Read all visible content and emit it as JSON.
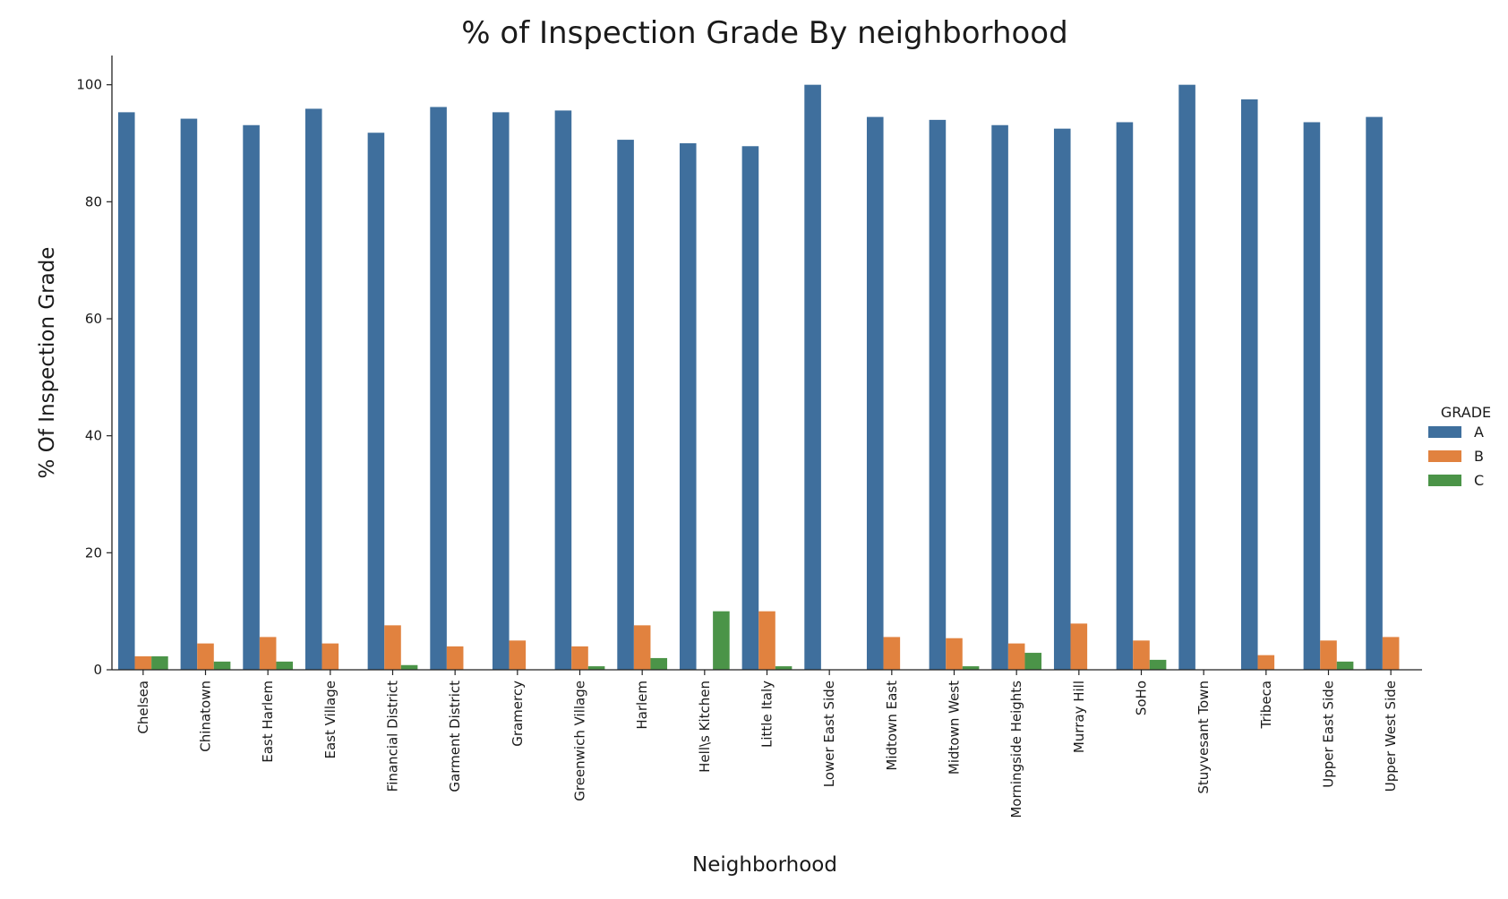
{
  "chart_data": {
    "type": "bar",
    "title": "% of Inspection Grade By neighborhood",
    "xlabel": "Neighborhood",
    "ylabel": "% Of Inspection Grade",
    "ylim": [
      0,
      105
    ],
    "yticks": [
      0,
      20,
      40,
      60,
      80,
      100
    ],
    "grid": false,
    "legend": {
      "title": "GRADE",
      "placement": "right"
    },
    "categories": [
      "Chelsea",
      "Chinatown",
      "East Harlem",
      "East Village",
      "Financial District",
      "Garment District",
      "Gramercy",
      "Greenwich Village",
      "Harlem",
      "Hell\\s Kitchen",
      "Little Italy",
      "Lower East Side",
      "Midtown East",
      "Midtown West",
      "Morningside Heights",
      "Murray Hill",
      "SoHo",
      "Stuyvesant Town",
      "Tribeca",
      "Upper East Side",
      "Upper West Side"
    ],
    "series": [
      {
        "name": "A",
        "color": "#3f6f9d",
        "values": [
          95.3,
          94.2,
          93.1,
          95.9,
          91.8,
          96.2,
          95.3,
          95.6,
          90.6,
          90.0,
          89.5,
          100.0,
          94.5,
          94.0,
          93.1,
          92.5,
          93.6,
          100.0,
          97.5,
          93.6,
          94.5
        ]
      },
      {
        "name": "B",
        "color": "#e1823f",
        "values": [
          2.3,
          4.5,
          5.6,
          4.5,
          7.6,
          4.0,
          5.0,
          4.0,
          7.6,
          0.0,
          10.0,
          0.0,
          5.6,
          5.4,
          4.5,
          7.9,
          5.0,
          0.0,
          2.5,
          5.0,
          5.6
        ]
      },
      {
        "name": "C",
        "color": "#4b9448",
        "values": [
          2.3,
          1.4,
          1.4,
          0.0,
          0.8,
          0.0,
          0.0,
          0.6,
          2.0,
          10.0,
          0.6,
          0.0,
          0.0,
          0.6,
          2.9,
          0.0,
          1.7,
          0.0,
          0.0,
          1.4,
          0.0
        ]
      }
    ]
  }
}
